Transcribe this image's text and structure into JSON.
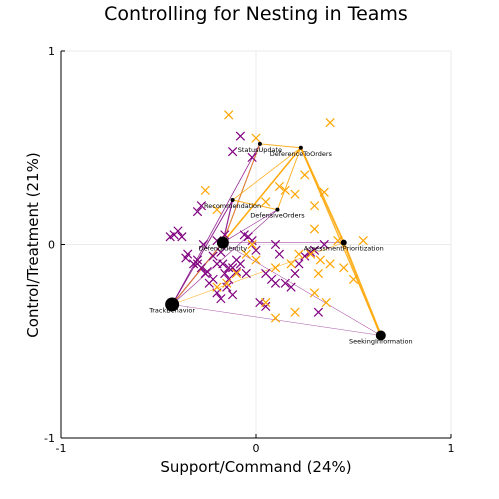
{
  "chart_data": {
    "type": "scatter",
    "title": "Controlling for Nesting in Teams",
    "xlabel": "Support/Command (24%)",
    "ylabel": "Control/Treatment (21%)",
    "xlim": [
      -1,
      1
    ],
    "ylim": [
      -1,
      1
    ],
    "xticks": [
      {
        "v": -1,
        "label": "-1"
      },
      {
        "v": 0,
        "label": "0"
      },
      {
        "v": 1,
        "label": "1"
      }
    ],
    "yticks": [
      {
        "v": -1,
        "label": "-1"
      },
      {
        "v": 0,
        "label": "0"
      },
      {
        "v": 1,
        "label": "1"
      }
    ],
    "grid": true,
    "colors": {
      "purple": "#800080",
      "orange": "#ffa500",
      "node": "#000000",
      "axis": "#000000",
      "grid": "#ebebeb"
    },
    "series": [
      {
        "color_key": "purple",
        "marker": "x",
        "x": [
          -0.08,
          -0.12,
          -0.02,
          -0.3,
          -0.28,
          -0.42,
          -0.4,
          -0.38,
          -0.44,
          -0.35,
          -0.32,
          -0.3,
          -0.28,
          -0.22,
          -0.2,
          -0.18,
          -0.16,
          -0.14,
          -0.12,
          -0.1,
          -0.08,
          -0.06,
          -0.04,
          -0.02,
          0.0,
          -0.24,
          -0.2,
          -0.18,
          -0.15,
          -0.12,
          -0.26,
          -0.22,
          -0.14,
          -0.1,
          -0.16,
          0.02,
          0.05,
          0.08,
          0.1,
          0.12,
          0.15,
          0.18,
          0.2,
          0.22,
          0.25,
          0.28,
          0.3,
          0.32,
          0.35,
          -0.2,
          -0.05,
          0.1,
          0.05,
          -0.25,
          -0.17,
          -0.3,
          -0.36,
          -0.27
        ],
        "y": [
          0.56,
          0.48,
          0.45,
          0.17,
          0.2,
          0.05,
          0.07,
          0.04,
          0.04,
          -0.05,
          -0.1,
          -0.08,
          -0.12,
          -0.06,
          -0.1,
          -0.04,
          -0.15,
          -0.18,
          -0.12,
          -0.08,
          -0.1,
          0.05,
          0.04,
          0.02,
          -0.03,
          -0.2,
          -0.25,
          -0.28,
          -0.22,
          -0.26,
          -0.15,
          -0.18,
          -0.12,
          -0.14,
          0.05,
          -0.3,
          -0.32,
          -0.18,
          0.0,
          -0.05,
          -0.2,
          -0.22,
          -0.15,
          -0.1,
          -0.06,
          -0.04,
          -0.03,
          -0.35,
          0.0,
          0.02,
          -0.15,
          -0.2,
          -0.15,
          -0.14,
          -0.1,
          -0.1,
          -0.07,
          0.0
        ]
      },
      {
        "color_key": "orange",
        "marker": "x",
        "x": [
          -0.14,
          0.38,
          0.0,
          -0.26,
          -0.2,
          0.2,
          0.25,
          0.05,
          0.12,
          0.15,
          0.3,
          0.35,
          0.42,
          0.55,
          0.5,
          0.45,
          0.38,
          0.28,
          0.32,
          0.18,
          0.22,
          0.1,
          0.0,
          -0.1,
          -0.15,
          -0.2,
          0.05,
          0.1,
          0.2,
          0.3,
          0.36,
          -0.05,
          -0.02,
          0.3,
          0.33
        ],
        "y": [
          0.67,
          0.63,
          0.55,
          0.28,
          0.18,
          0.26,
          0.36,
          0.22,
          0.3,
          0.28,
          0.2,
          0.27,
          0.02,
          0.02,
          -0.18,
          -0.12,
          -0.1,
          -0.05,
          -0.15,
          -0.1,
          -0.05,
          -0.12,
          -0.08,
          -0.15,
          -0.2,
          -0.22,
          -0.3,
          -0.38,
          -0.35,
          -0.25,
          -0.3,
          -0.05,
          0.0,
          0.08,
          -0.08
        ]
      }
    ],
    "nodes": [
      {
        "label": "StatusUpdate",
        "x": 0.02,
        "y": 0.52,
        "size": 2
      },
      {
        "label": "DeferenceToOrders",
        "x": 0.23,
        "y": 0.5,
        "size": 2
      },
      {
        "label": "Recommendation",
        "x": -0.12,
        "y": 0.23,
        "size": 2
      },
      {
        "label": "DefensiveOrders",
        "x": 0.11,
        "y": 0.18,
        "size": 2
      },
      {
        "label": "DefendIdentity",
        "x": -0.17,
        "y": 0.01,
        "size": 6
      },
      {
        "label": "AssessmentPrioritization",
        "x": 0.45,
        "y": 0.01,
        "size": 3
      },
      {
        "label": "TrackBehavior",
        "x": -0.43,
        "y": -0.31,
        "size": 7
      },
      {
        "label": "SeekingInformation",
        "x": 0.64,
        "y": -0.47,
        "size": 5
      }
    ],
    "edges": [
      {
        "from": 4,
        "to": 2,
        "color_key": "purple",
        "weight": 1.2
      },
      {
        "from": 4,
        "to": 0,
        "color_key": "purple",
        "weight": 1.0
      },
      {
        "from": 6,
        "to": 2,
        "color_key": "purple",
        "weight": 1.0
      },
      {
        "from": 6,
        "to": 0,
        "color_key": "purple",
        "weight": 0.8
      },
      {
        "from": 6,
        "to": 4,
        "color_key": "purple",
        "weight": 1.2
      },
      {
        "from": 6,
        "to": 3,
        "color_key": "purple",
        "weight": 0.6
      },
      {
        "from": 4,
        "to": 5,
        "color_key": "purple",
        "weight": 0.5
      },
      {
        "from": 4,
        "to": 7,
        "color_key": "purple",
        "weight": 0.5
      },
      {
        "from": 4,
        "to": 3,
        "color_key": "purple",
        "weight": 0.6
      },
      {
        "from": 4,
        "to": 1,
        "color_key": "orange",
        "weight": 1.6
      },
      {
        "from": 1,
        "to": 5,
        "color_key": "orange",
        "weight": 2.0
      },
      {
        "from": 5,
        "to": 7,
        "color_key": "orange",
        "weight": 2.2
      },
      {
        "from": 1,
        "to": 7,
        "color_key": "orange",
        "weight": 1.2
      },
      {
        "from": 0,
        "to": 1,
        "color_key": "orange",
        "weight": 1.0
      },
      {
        "from": 3,
        "to": 1,
        "color_key": "orange",
        "weight": 1.0
      },
      {
        "from": 2,
        "to": 3,
        "color_key": "orange",
        "weight": 1.0
      },
      {
        "from": 6,
        "to": 5,
        "color_key": "orange",
        "weight": 0.6
      },
      {
        "from": 6,
        "to": 1,
        "color_key": "orange",
        "weight": 0.8
      },
      {
        "from": 4,
        "to": 0,
        "color_key": "orange",
        "weight": 0.8
      },
      {
        "from": 2,
        "to": 1,
        "color_key": "orange",
        "weight": 0.8
      },
      {
        "from": 6,
        "to": 7,
        "color_key": "purple",
        "weight": 0.4
      }
    ]
  }
}
